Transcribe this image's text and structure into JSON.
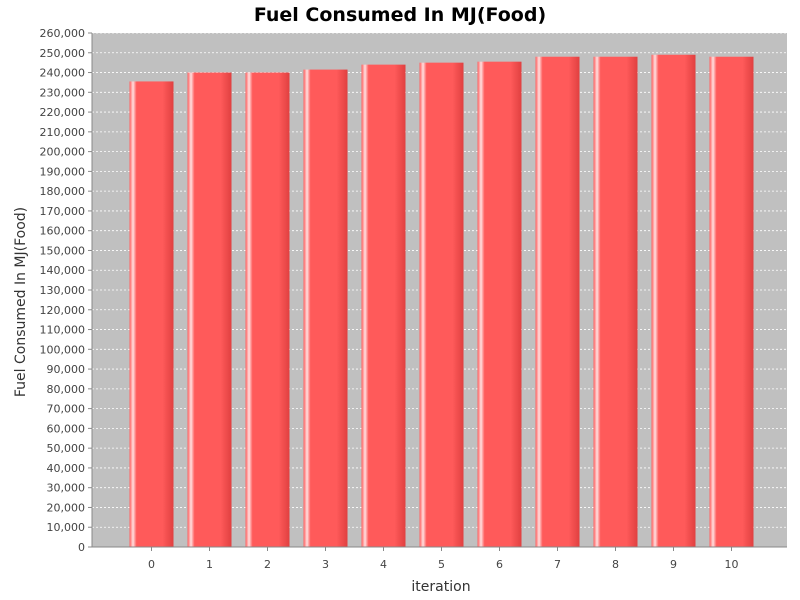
{
  "chart_data": {
    "type": "bar",
    "title": "Fuel Consumed In MJ(Food)",
    "xlabel": "iteration",
    "ylabel": "Fuel Consumed In MJ(Food)",
    "categories": [
      "0",
      "1",
      "2",
      "3",
      "4",
      "5",
      "6",
      "7",
      "8",
      "9",
      "10"
    ],
    "values": [
      235500,
      240000,
      240000,
      241500,
      244000,
      245000,
      245500,
      248000,
      248000,
      249000,
      248000
    ],
    "ylim": [
      0,
      260000
    ],
    "ytick_step": 10000,
    "grid": true,
    "legend": "none",
    "colors": {
      "plot_background": "#c0c0c0",
      "bar": "#ff5a5a",
      "bar_highlight": "#ffe0e0",
      "bar_dark": "#e04040",
      "gridline": "#ffffff"
    }
  }
}
